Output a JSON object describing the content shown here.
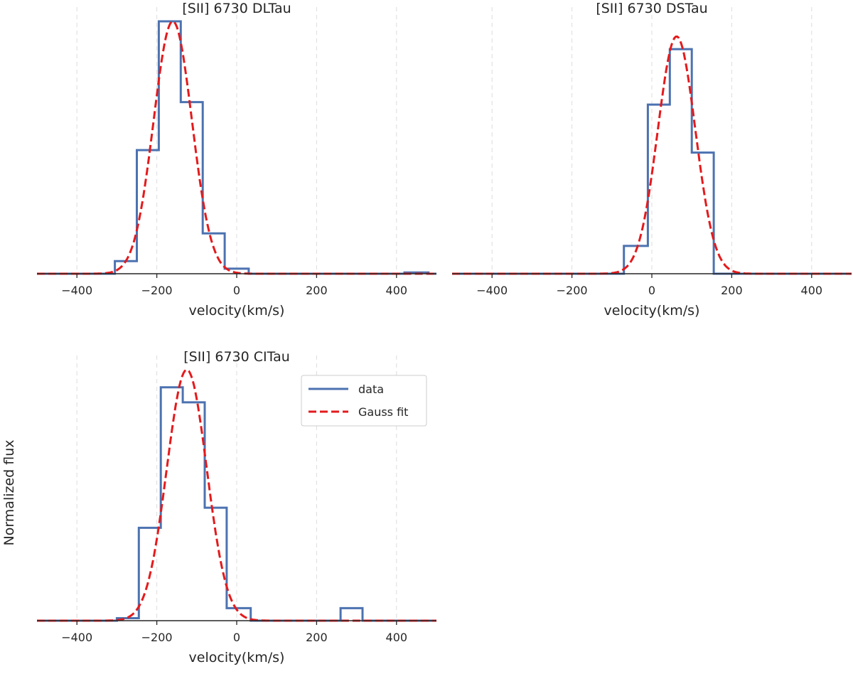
{
  "figure": {
    "ylabel": "Normalized flux",
    "legend_panel": 2,
    "legend_position": "top-right",
    "legend": [
      {
        "label": "data",
        "style": "solid",
        "color": "#4c72b0"
      },
      {
        "label": "Gauss fit",
        "style": "dashed",
        "color": "#e41a1c"
      }
    ]
  },
  "colors": {
    "data": "#4c72b0",
    "fit": "#e41a1c",
    "grid": "#dddddd",
    "axis": "#262626"
  },
  "chart_data": [
    {
      "type": "line",
      "title": "[SII] 6730 DLTau",
      "xlabel": "velocity(km/s)",
      "ylabel": "",
      "xlim": [
        -500,
        500
      ],
      "ylim": [
        0,
        1
      ],
      "xticks": [
        -400,
        -200,
        0,
        200,
        400
      ],
      "grid": "vertical-dashed",
      "series": [
        {
          "name": "data",
          "kind": "step",
          "edges": [
            -500,
            -305,
            -250,
            -195,
            -140,
            -85,
            -30,
            30,
            420,
            480,
            500
          ],
          "values": [
            0,
            0.05,
            0.49,
            1.0,
            0.68,
            0.16,
            0.02,
            0,
            0.005,
            0
          ]
        },
        {
          "name": "Gauss fit",
          "kind": "gaussian",
          "amplitude": 1.0,
          "center": -160,
          "sigma": 48
        }
      ]
    },
    {
      "type": "line",
      "title": "[SII] 6730 DSTau",
      "xlabel": "velocity(km/s)",
      "ylabel": "",
      "xlim": [
        -500,
        500
      ],
      "ylim": [
        0,
        1
      ],
      "xticks": [
        -400,
        -200,
        0,
        200,
        400
      ],
      "grid": "vertical-dashed",
      "series": [
        {
          "name": "data",
          "kind": "step",
          "edges": [
            -500,
            -70,
            -10,
            45,
            100,
            155,
            500
          ],
          "values": [
            0,
            0.11,
            0.67,
            0.89,
            0.48,
            0
          ]
        },
        {
          "name": "Gauss fit",
          "kind": "gaussian",
          "amplitude": 0.94,
          "center": 62,
          "sigma": 47
        }
      ]
    },
    {
      "type": "line",
      "title": "[SII] 6730 CITau",
      "xlabel": "velocity(km/s)",
      "ylabel": "",
      "xlim": [
        -500,
        500
      ],
      "ylim": [
        0,
        1
      ],
      "xticks": [
        -400,
        -200,
        0,
        200,
        400
      ],
      "grid": "vertical-dashed",
      "series": [
        {
          "name": "data",
          "kind": "step",
          "edges": [
            -500,
            -300,
            -245,
            -190,
            -135,
            -80,
            -25,
            35,
            260,
            315,
            500
          ],
          "values": [
            0,
            0.01,
            0.37,
            0.93,
            0.87,
            0.45,
            0.05,
            0,
            0.05,
            0
          ]
        },
        {
          "name": "Gauss fit",
          "kind": "gaussian",
          "amplitude": 1.0,
          "center": -125,
          "sigma": 50
        }
      ]
    }
  ]
}
